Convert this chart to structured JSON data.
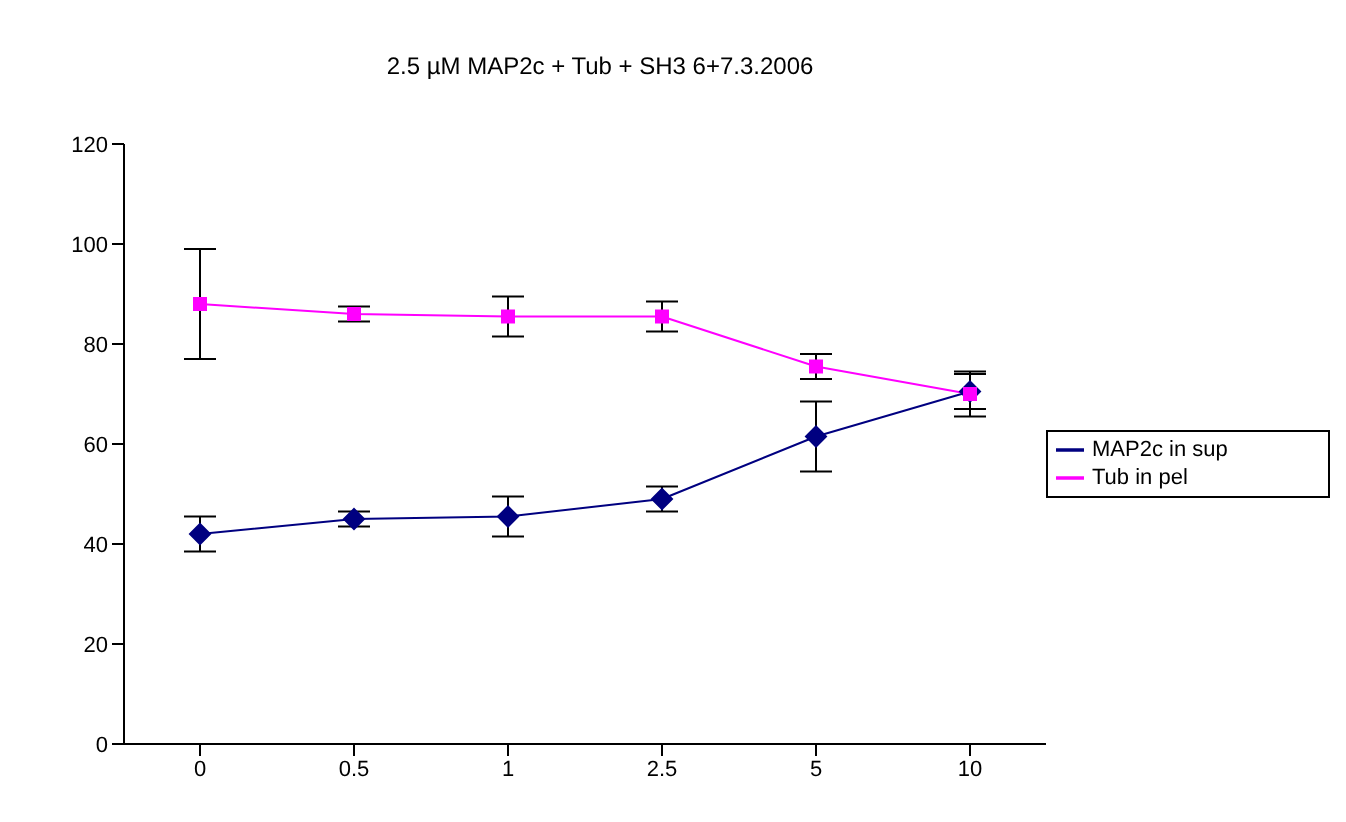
{
  "chart_data": {
    "type": "line",
    "title": "2.5 µM MAP2c + Tub + SH3 6+7.3.2006",
    "categories": [
      "0",
      "0.5",
      "1",
      "2.5",
      "5",
      "10"
    ],
    "series": [
      {
        "name": "MAP2c in sup",
        "color": "#000080",
        "marker": "diamond",
        "values": [
          42,
          45,
          45.5,
          49,
          61.5,
          70.5
        ],
        "errors": [
          3.5,
          1.5,
          4,
          2.5,
          7,
          3.5
        ]
      },
      {
        "name": "Tub in pel",
        "color": "#ff00ff",
        "marker": "square",
        "values": [
          88,
          86,
          85.5,
          85.5,
          75.5,
          70
        ],
        "errors": [
          11,
          1.5,
          4,
          3,
          2.5,
          4.5
        ]
      }
    ],
    "ylim": [
      0,
      120
    ],
    "yticks": [
      0,
      20,
      40,
      60,
      80,
      100,
      120
    ],
    "grid": false,
    "legend": "right"
  }
}
